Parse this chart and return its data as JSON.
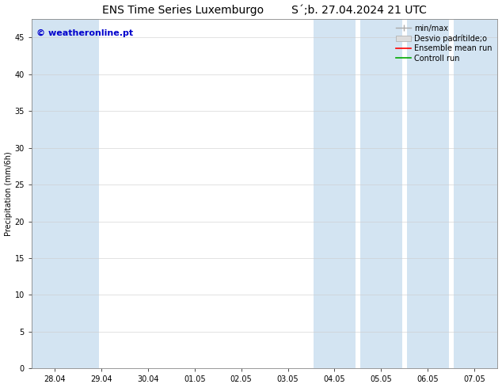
{
  "title_left": "ENS Time Series Luxemburgo",
  "title_right": "S´;b. 27.04.2024 21 UTC",
  "ylabel": "Precipitation (mm/6h)",
  "ylim": [
    0,
    47.5
  ],
  "yticks": [
    0,
    5,
    10,
    15,
    20,
    25,
    30,
    35,
    40,
    45
  ],
  "xtick_labels": [
    "28.04",
    "29.04",
    "30.04",
    "01.05",
    "02.05",
    "03.05",
    "04.05",
    "05.05",
    "06.05",
    "07.05"
  ],
  "xtick_positions": [
    0,
    1,
    2,
    3,
    4,
    5,
    6,
    7,
    8,
    9
  ],
  "xlim": [
    -0.5,
    9.5
  ],
  "background_color": "#ffffff",
  "plot_bg_color": "#ffffff",
  "shaded_bands": [
    {
      "x_start": -0.5,
      "x_end": 0.95,
      "color": "#cce0f0",
      "alpha": 0.85
    },
    {
      "x_start": 5.55,
      "x_end": 6.45,
      "color": "#cce0f0",
      "alpha": 0.85
    },
    {
      "x_start": 6.55,
      "x_end": 7.45,
      "color": "#cce0f0",
      "alpha": 0.85
    },
    {
      "x_start": 7.55,
      "x_end": 8.45,
      "color": "#cce0f0",
      "alpha": 0.85
    },
    {
      "x_start": 8.55,
      "x_end": 9.5,
      "color": "#cce0f0",
      "alpha": 0.85
    }
  ],
  "watermark_text": "© weatheronline.pt",
  "watermark_color": "#0000cc",
  "watermark_fontsize": 8,
  "title_fontsize": 10,
  "ylabel_fontsize": 7,
  "tick_fontsize": 7,
  "legend_fontsize": 7,
  "grid_color": "#cccccc",
  "grid_alpha": 0.8,
  "grid_lw": 0.5,
  "minmax_color": "#aaaaaa",
  "desvio_color": "#dddddd",
  "ensemble_color": "#ff0000",
  "control_color": "#00aa00"
}
